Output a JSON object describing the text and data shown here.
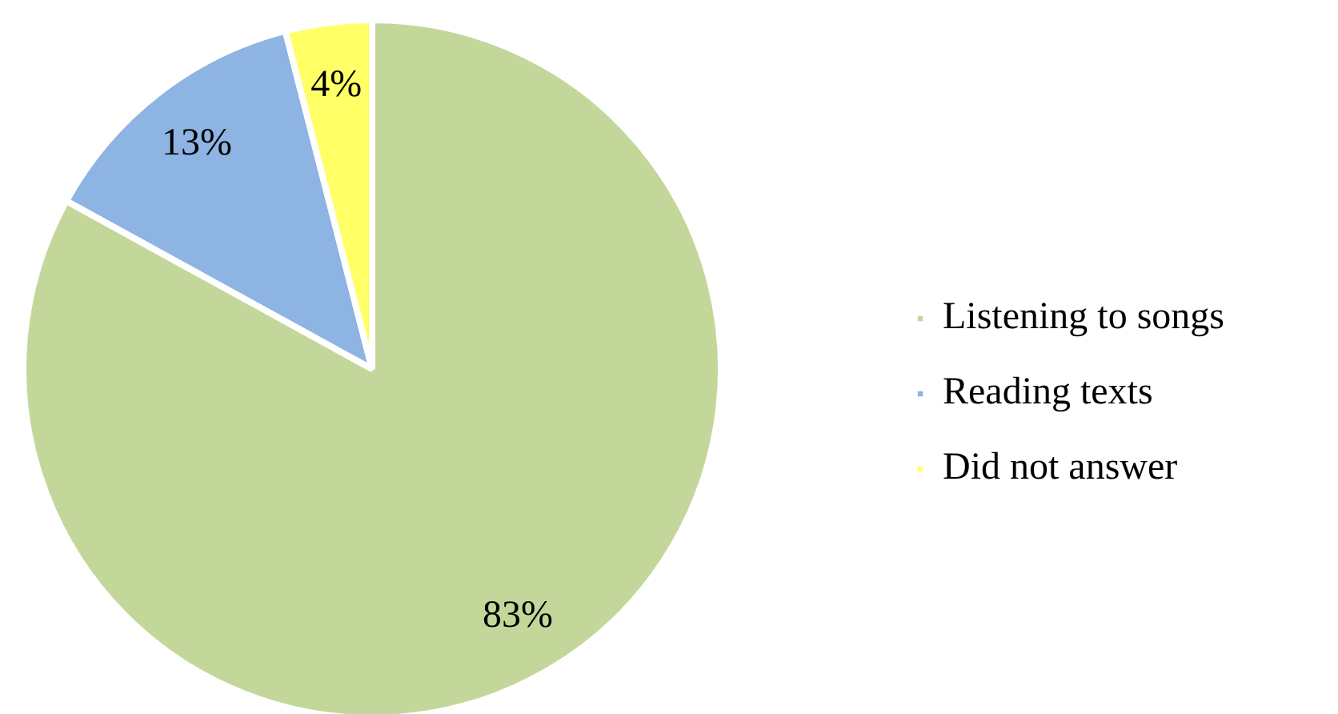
{
  "chart_data": {
    "type": "pie",
    "categories": [
      "Listening to songs",
      "Reading texts",
      "Did not answer"
    ],
    "values": [
      83,
      13,
      4
    ],
    "colors": [
      "#c4d79b",
      "#8db4e2",
      "#ffff66"
    ],
    "value_labels": [
      "83%",
      "13%",
      "4%"
    ],
    "legend": "right"
  }
}
